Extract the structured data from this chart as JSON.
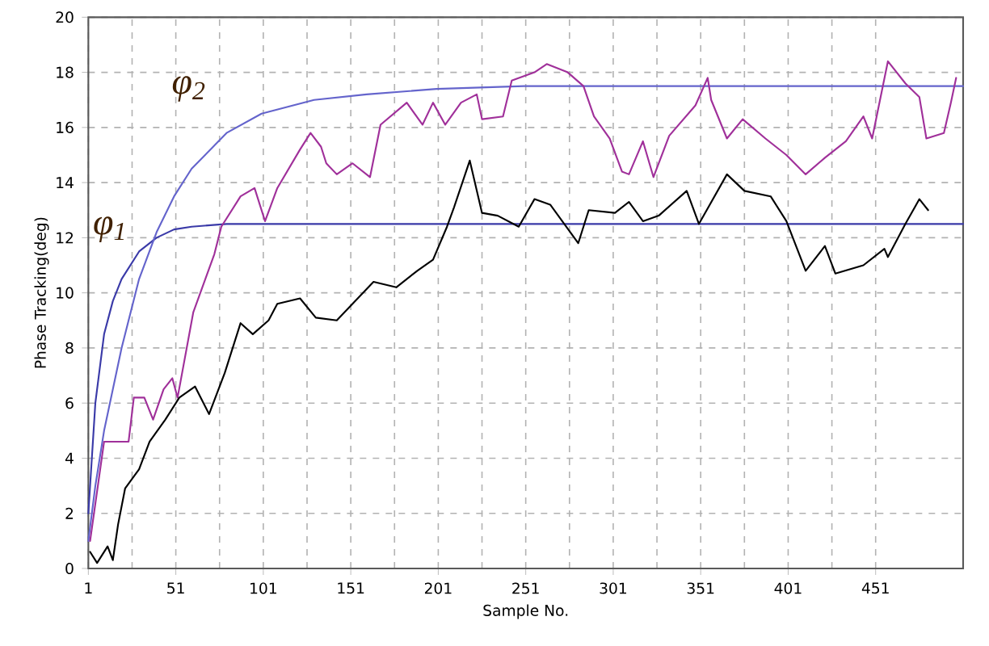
{
  "chart_data": {
    "type": "line",
    "xlabel": "Sample No.",
    "ylabel": "Phase Tracking(deg)",
    "xlim": [
      1,
      501
    ],
    "xticks": [
      1,
      51,
      101,
      151,
      201,
      251,
      301,
      351,
      401,
      451
    ],
    "ylim": [
      0,
      20
    ],
    "yticks": [
      0,
      2,
      4,
      6,
      8,
      10,
      12,
      14,
      16,
      18,
      20
    ],
    "grid": true,
    "legend": false,
    "marker": "none",
    "series": [
      {
        "name": "φ$_{1}$",
        "color": "#3a3aa8",
        "x": [
          1,
          5,
          10,
          15,
          20,
          30,
          40,
          50,
          60,
          80,
          120,
          501
        ],
        "values": [
          2,
          6,
          8.5,
          9.7,
          10.5,
          11.5,
          12,
          12.3,
          12.4,
          12.5,
          12.5,
          12.5
        ]
      },
      {
        "name": "φ$_{2}$",
        "color": "#6464cc",
        "x": [
          1,
          5,
          10,
          20,
          30,
          40,
          50,
          60,
          80,
          100,
          130,
          160,
          200,
          250,
          501
        ],
        "values": [
          1,
          3,
          5,
          8,
          10.5,
          12.2,
          13.5,
          14.5,
          15.8,
          16.5,
          17,
          17.2,
          17.4,
          17.5,
          17.5
        ]
      },
      {
        "color": "#a0309a",
        "x": [
          2,
          10,
          24,
          27,
          33,
          38,
          44,
          49,
          52,
          61,
          73,
          77,
          88,
          96,
          102,
          109,
          122,
          128,
          134,
          137,
          143,
          152,
          162,
          168,
          183,
          192,
          198,
          205,
          214,
          223,
          226,
          238,
          243,
          256,
          263,
          275,
          284,
          290,
          299,
          306,
          310,
          318,
          324,
          333,
          348,
          355,
          357,
          366,
          375,
          388,
          400,
          411,
          422,
          434,
          444,
          449,
          458,
          468,
          476,
          480,
          490,
          494,
          497
        ],
        "values": [
          1.0,
          4.6,
          4.6,
          6.2,
          6.2,
          5.4,
          6.5,
          6.9,
          6.2,
          9.3,
          11.4,
          12.4,
          13.5,
          13.8,
          12.6,
          13.8,
          15.2,
          15.8,
          15.3,
          14.7,
          14.3,
          14.7,
          14.2,
          16.1,
          16.9,
          16.1,
          16.9,
          16.1,
          16.9,
          17.2,
          16.3,
          16.4,
          17.7,
          18.0,
          18.3,
          18.0,
          17.5,
          16.4,
          15.6,
          14.4,
          14.3,
          15.5,
          14.2,
          15.7,
          16.8,
          17.8,
          17.0,
          15.6,
          16.3,
          15.6,
          15.0,
          14.3,
          14.9,
          15.5,
          16.4,
          15.6,
          18.4,
          17.6,
          17.1,
          15.6,
          15.8,
          16.9,
          17.8
        ]
      },
      {
        "color": "#000000",
        "x": [
          2,
          6,
          12,
          15,
          18,
          22,
          30,
          36,
          45,
          53,
          62,
          70,
          79,
          88,
          95,
          104,
          109,
          122,
          131,
          143,
          152,
          164,
          177,
          189,
          198,
          206,
          210,
          219,
          226,
          235,
          247,
          256,
          265,
          281,
          287,
          302,
          310,
          318,
          327,
          343,
          350,
          366,
          376,
          391,
          400,
          411,
          422,
          428,
          444,
          456,
          458,
          468,
          476,
          481
        ],
        "values": [
          0.6,
          0.2,
          0.8,
          0.3,
          1.6,
          2.9,
          3.6,
          4.6,
          5.4,
          6.2,
          6.6,
          5.6,
          7.1,
          8.9,
          8.5,
          9.0,
          9.6,
          9.8,
          9.1,
          9.0,
          9.6,
          10.4,
          10.2,
          10.8,
          11.2,
          12.4,
          13.1,
          14.8,
          12.9,
          12.8,
          12.4,
          13.4,
          13.2,
          11.8,
          13.0,
          12.9,
          13.3,
          12.6,
          12.8,
          13.7,
          12.5,
          14.3,
          13.7,
          13.5,
          12.6,
          10.8,
          11.7,
          10.7,
          11.0,
          11.6,
          11.3,
          12.5,
          13.4,
          13.0
        ]
      }
    ]
  }
}
